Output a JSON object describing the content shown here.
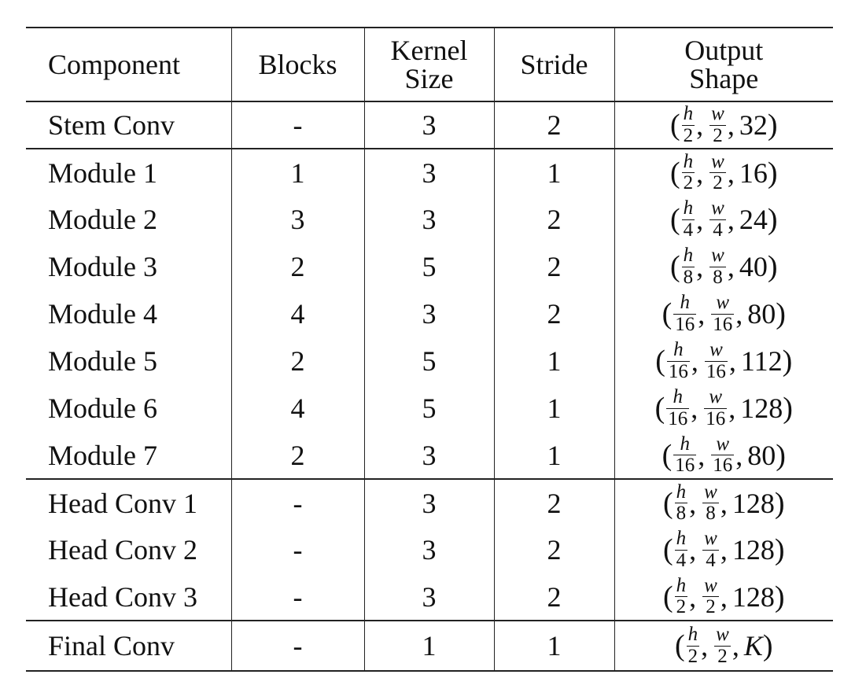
{
  "headers": {
    "component": "Component",
    "blocks": "Blocks",
    "kernel_line1": "Kernel",
    "kernel_line2": "Size",
    "stride": "Stride",
    "output_line1": "Output",
    "output_line2": "Shape"
  },
  "rows": [
    {
      "component": "Stem Conv",
      "blocks": "-",
      "kernel": "3",
      "stride": "2",
      "out_h_num": "h",
      "out_h_den": "2",
      "out_w_num": "w",
      "out_w_den": "2",
      "channels": "32"
    },
    {
      "component": "Module 1",
      "blocks": "1",
      "kernel": "3",
      "stride": "1",
      "out_h_num": "h",
      "out_h_den": "2",
      "out_w_num": "w",
      "out_w_den": "2",
      "channels": "16"
    },
    {
      "component": "Module 2",
      "blocks": "3",
      "kernel": "3",
      "stride": "2",
      "out_h_num": "h",
      "out_h_den": "4",
      "out_w_num": "w",
      "out_w_den": "4",
      "channels": "24"
    },
    {
      "component": "Module 3",
      "blocks": "2",
      "kernel": "5",
      "stride": "2",
      "out_h_num": "h",
      "out_h_den": "8",
      "out_w_num": "w",
      "out_w_den": "8",
      "channels": "40"
    },
    {
      "component": "Module 4",
      "blocks": "4",
      "kernel": "3",
      "stride": "2",
      "out_h_num": "h",
      "out_h_den": "16",
      "out_w_num": "w",
      "out_w_den": "16",
      "channels": "80"
    },
    {
      "component": "Module 5",
      "blocks": "2",
      "kernel": "5",
      "stride": "1",
      "out_h_num": "h",
      "out_h_den": "16",
      "out_w_num": "w",
      "out_w_den": "16",
      "channels": "112"
    },
    {
      "component": "Module 6",
      "blocks": "4",
      "kernel": "5",
      "stride": "1",
      "out_h_num": "h",
      "out_h_den": "16",
      "out_w_num": "w",
      "out_w_den": "16",
      "channels": "128"
    },
    {
      "component": "Module 7",
      "blocks": "2",
      "kernel": "3",
      "stride": "1",
      "out_h_num": "h",
      "out_h_den": "16",
      "out_w_num": "w",
      "out_w_den": "16",
      "channels": "80"
    },
    {
      "component": "Head Conv 1",
      "blocks": "-",
      "kernel": "3",
      "stride": "2",
      "out_h_num": "h",
      "out_h_den": "8",
      "out_w_num": "w",
      "out_w_den": "8",
      "channels": "128"
    },
    {
      "component": "Head Conv 2",
      "blocks": "-",
      "kernel": "3",
      "stride": "2",
      "out_h_num": "h",
      "out_h_den": "4",
      "out_w_num": "w",
      "out_w_den": "4",
      "channels": "128"
    },
    {
      "component": "Head Conv 3",
      "blocks": "-",
      "kernel": "3",
      "stride": "2",
      "out_h_num": "h",
      "out_h_den": "2",
      "out_w_num": "w",
      "out_w_den": "2",
      "channels": "128"
    },
    {
      "component": "Final Conv",
      "blocks": "-",
      "kernel": "1",
      "stride": "1",
      "out_h_num": "h",
      "out_h_den": "2",
      "out_w_num": "w",
      "out_w_den": "2",
      "channels": "K"
    }
  ],
  "symbols": {
    "open_paren": "(",
    "close_paren": ")",
    "comma": ","
  }
}
